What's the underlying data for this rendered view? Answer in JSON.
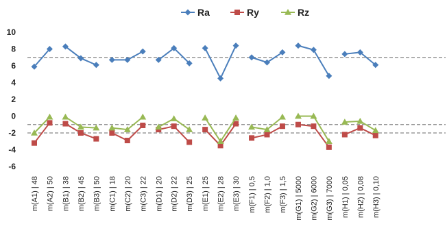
{
  "chart_data": {
    "type": "line",
    "categories": [
      "m(A1) | 48",
      "m(A2) | 50",
      "m(B1) | 38",
      "m(B2) | 45",
      "m(B3) | 50",
      "m(C1) | 18",
      "m(C2) | 20",
      "m(C3) | 22",
      "m(D1) | 20",
      "m(D2) | 22",
      "m(D3) | 25",
      "m(E1) | 25",
      "m(E2) | 28",
      "m(E3) | 30",
      "m(F1) | 0,5",
      "m(F2) | 1,0",
      "m(F3) | 1,5",
      "m(G1) | 5000",
      "m(G2) | 6000",
      "m(G3) | 7000",
      "m(H1) | 0,05",
      "m(H2) | 0,08",
      "m(H3) | 0,10"
    ],
    "groups": [
      2,
      3,
      3,
      3,
      3,
      3,
      3,
      3
    ],
    "series": [
      {
        "name": "Ra",
        "color": "#4A7EBB",
        "marker": "diamond",
        "values": [
          5.9,
          8.0,
          8.3,
          6.9,
          6.1,
          6.7,
          6.7,
          7.7,
          6.7,
          8.1,
          6.3,
          8.1,
          4.5,
          8.4,
          7.0,
          6.4,
          7.6,
          8.4,
          7.9,
          4.8,
          7.4,
          7.6,
          6.1
        ]
      },
      {
        "name": "Ry",
        "color": "#BE4B48",
        "marker": "square",
        "values": [
          -3.2,
          -0.8,
          -0.9,
          -2.0,
          -2.7,
          -2.0,
          -2.9,
          -1.1,
          -1.6,
          -1.2,
          -3.1,
          -1.6,
          -3.5,
          -0.9,
          -2.6,
          -2.2,
          -1.2,
          -1.0,
          -1.2,
          -3.7,
          -2.2,
          -1.4,
          -2.3
        ]
      },
      {
        "name": "Rz",
        "color": "#98B954",
        "marker": "triangle",
        "values": [
          -2.0,
          -0.1,
          -0.1,
          -1.3,
          -1.4,
          -1.4,
          -1.6,
          -0.1,
          -1.3,
          -0.3,
          -1.6,
          -0.2,
          -3.0,
          -0.2,
          -1.3,
          -1.6,
          -0.1,
          0.0,
          0.0,
          -3.0,
          -0.7,
          -0.6,
          -1.7
        ]
      }
    ],
    "reference_lines": [
      7.0,
      -1.0,
      -2.0
    ],
    "yticks": [
      10,
      8,
      6,
      4,
      2,
      0,
      -2,
      -4,
      -6
    ],
    "ylim": [
      -6,
      10
    ],
    "legend": "top",
    "grid": false
  }
}
